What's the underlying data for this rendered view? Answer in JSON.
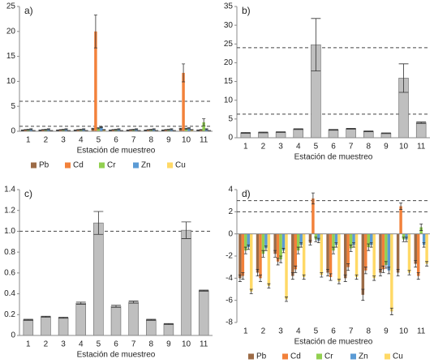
{
  "chart_data": [
    {
      "type": "bar",
      "panel_label": "a)",
      "x_label": "Estación de muestreo",
      "legend": "bottom",
      "categories": [
        "1",
        "2",
        "3",
        "4",
        "5",
        "6",
        "7",
        "8",
        "9",
        "10",
        "11"
      ],
      "series": [
        {
          "name": "Pb",
          "color": "#9c6b46",
          "values": [
            0.2,
            0.2,
            0.2,
            0.2,
            0.5,
            0.2,
            0.2,
            0.2,
            0.2,
            0.5,
            0.2
          ],
          "errors": [
            0.05,
            0.05,
            0.05,
            0.05,
            0.1,
            0.05,
            0.05,
            0.05,
            0.05,
            0.1,
            0.05
          ]
        },
        {
          "name": "Cd",
          "color": "#f2813a",
          "values": [
            0.3,
            0.3,
            0.3,
            0.3,
            20,
            0.3,
            0.3,
            0.3,
            0.3,
            11.7,
            0.3
          ],
          "errors": [
            0.05,
            0.05,
            0.05,
            0.05,
            3.3,
            0.05,
            0.05,
            0.05,
            0.05,
            1.8,
            0.05
          ]
        },
        {
          "name": "Cr",
          "color": "#92d050",
          "values": [
            0.3,
            0.3,
            0.3,
            0.3,
            0.6,
            0.3,
            0.3,
            0.3,
            0.3,
            0.5,
            1.8
          ],
          "errors": [
            0.1,
            0.1,
            0.1,
            0.1,
            0.1,
            0.1,
            0.1,
            0.1,
            0.1,
            0.1,
            0.7
          ]
        },
        {
          "name": "Zn",
          "color": "#5b9bd5",
          "values": [
            0.4,
            0.4,
            0.4,
            0.4,
            0.8,
            0.4,
            0.4,
            0.4,
            0.4,
            0.6,
            0.4
          ],
          "errors": [
            0.1,
            0.1,
            0.1,
            0.1,
            0.1,
            0.1,
            0.1,
            0.1,
            0.1,
            0.1,
            0.1
          ]
        },
        {
          "name": "Cu",
          "color": "#ffd966",
          "values": [
            0.1,
            0.1,
            0.1,
            0.1,
            0.3,
            0.1,
            0.1,
            0.1,
            0.1,
            0.3,
            0.1
          ],
          "errors": [
            0.05,
            0.05,
            0.05,
            0.05,
            0.05,
            0.05,
            0.05,
            0.05,
            0.05,
            0.05,
            0.05
          ]
        }
      ],
      "ylim": [
        0,
        25
      ],
      "yticks": [
        0,
        5,
        10,
        15,
        20,
        25
      ],
      "hlines": [
        6,
        1
      ]
    },
    {
      "type": "bar",
      "panel_label": "b)",
      "x_label": "Estación de muestreo",
      "color": "#bfbfbf",
      "categories": [
        "1",
        "2",
        "3",
        "4",
        "5",
        "6",
        "7",
        "8",
        "9",
        "10",
        "11"
      ],
      "values": [
        1.3,
        1.4,
        1.5,
        2.3,
        24.8,
        2.1,
        2.4,
        1.7,
        1.2,
        15.9,
        4.0
      ],
      "errors": [
        0.1,
        0.1,
        0.1,
        0.1,
        7,
        0.1,
        0.1,
        0.1,
        0.1,
        3.8,
        0.2
      ],
      "ylim": [
        0,
        35
      ],
      "yticks": [
        0,
        5,
        10,
        15,
        20,
        25,
        30,
        35
      ],
      "hlines": [
        24,
        6.3
      ]
    },
    {
      "type": "bar",
      "panel_label": "c)",
      "x_label": "Estación de muestreo",
      "color": "#bfbfbf",
      "categories": [
        "1",
        "2",
        "3",
        "4",
        "5",
        "6",
        "7",
        "8",
        "9",
        "10",
        "11"
      ],
      "values": [
        0.15,
        0.18,
        0.17,
        0.31,
        1.08,
        0.28,
        0.32,
        0.15,
        0.11,
        1.01,
        0.43
      ],
      "errors": [
        0.005,
        0.005,
        0.005,
        0.01,
        0.11,
        0.01,
        0.01,
        0.005,
        0.005,
        0.08,
        0.005
      ],
      "ylim": [
        0,
        1.4
      ],
      "yticks": [
        0,
        0.2,
        0.4,
        0.6,
        0.8,
        {
          "value": 1,
          "label": "1.0"
        },
        1.2,
        1.4
      ],
      "hlines": [
        1
      ]
    },
    {
      "type": "bar",
      "panel_label": "d)",
      "x_label": "Estación de muestreo",
      "legend": "bottom",
      "categories": [
        "1",
        "2",
        "3",
        "4",
        "5",
        "6",
        "7",
        "8",
        "9",
        "10",
        "11"
      ],
      "series": [
        {
          "name": "Pb",
          "color": "#9c6b46",
          "values": [
            -4,
            -3.5,
            -1.8,
            -3.8,
            -0.8,
            -3.5,
            -4,
            -5.5,
            -3.5,
            -3.5,
            -2.7
          ],
          "errors": [
            0.3,
            0.3,
            0.3,
            0.3,
            0.2,
            0.3,
            0.3,
            0.5,
            0.3,
            0.3,
            0.3
          ]
        },
        {
          "name": "Cd",
          "color": "#f2813a",
          "values": [
            -3.8,
            -4,
            -2.5,
            -3.2,
            3.2,
            -3.9,
            -3,
            -3.3,
            -3.2,
            2.5,
            -3.8
          ],
          "errors": [
            0.3,
            0.3,
            0.3,
            0.3,
            0.5,
            0.3,
            0.3,
            0.3,
            0.3,
            0.3,
            0.3
          ]
        },
        {
          "name": "Cr",
          "color": "#92d050",
          "values": [
            -1.5,
            -1.8,
            -2.3,
            -1.5,
            -0.5,
            -1.5,
            -1.3,
            -1.2,
            -2.8,
            -0.5,
            0.6
          ],
          "errors": [
            0.3,
            0.3,
            0.3,
            0.3,
            0.2,
            0.3,
            0.3,
            0.3,
            0.3,
            0.2,
            0.3
          ]
        },
        {
          "name": "Zn",
          "color": "#5b9bd5",
          "values": [
            -1.2,
            -1.3,
            -1.5,
            -1,
            -0.6,
            -1,
            -1,
            -1,
            -3.3,
            -0.5,
            -1
          ],
          "errors": [
            0.2,
            0.2,
            0.2,
            0.2,
            0.2,
            0.2,
            0.2,
            0.2,
            0.3,
            0.2,
            0.2
          ]
        },
        {
          "name": "Cu",
          "color": "#ffd966",
          "values": [
            -5.2,
            -4.7,
            -5.9,
            -3.9,
            -3.7,
            -4.3,
            -3.9,
            -4,
            -7,
            -3.5,
            -2.7
          ],
          "errors": [
            0.2,
            0.2,
            0.2,
            0.2,
            0.2,
            0.2,
            0.2,
            0.2,
            0.3,
            0.2,
            0.2
          ]
        }
      ],
      "ylim": [
        -8,
        4
      ],
      "yticks": [
        -8,
        -6,
        -4,
        -2,
        0,
        2,
        4
      ],
      "hlines": [
        3,
        2
      ]
    }
  ]
}
